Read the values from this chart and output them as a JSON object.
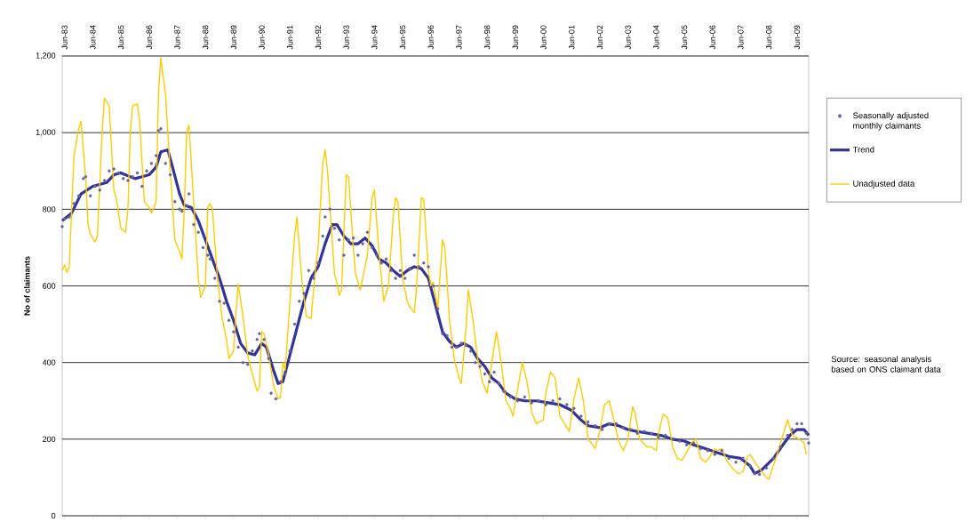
{
  "chart_data": {
    "type": "line",
    "ylabel": "No of claimants",
    "annotations": [
      "Source: seasonal analysis based on ONS claimant data"
    ],
    "xlim": [
      "1983-05",
      "2009-11"
    ],
    "xticks": [
      {
        "value": "1983-06",
        "label": "Jun-83"
      },
      {
        "value": "1984-06",
        "label": "Jun-84"
      },
      {
        "value": "1985-06",
        "label": "Jun-85"
      },
      {
        "value": "1986-06",
        "label": "Jun-86"
      },
      {
        "value": "1987-06",
        "label": "Jun-87"
      },
      {
        "value": "1988-06",
        "label": "Jun-88"
      },
      {
        "value": "1989-06",
        "label": "Jun-89"
      },
      {
        "value": "1990-06",
        "label": "Jun-90"
      },
      {
        "value": "1991-06",
        "label": "Jun-91"
      },
      {
        "value": "1992-06",
        "label": "Jun-92"
      },
      {
        "value": "1993-06",
        "label": "Jun-93"
      },
      {
        "value": "1994-06",
        "label": "Jun-94"
      },
      {
        "value": "1995-06",
        "label": "Jun-95"
      },
      {
        "value": "1996-06",
        "label": "Jun-96"
      },
      {
        "value": "1997-06",
        "label": "Jun-97"
      },
      {
        "value": "1998-06",
        "label": "Jun-98"
      },
      {
        "value": "1999-06",
        "label": "Jun-99"
      },
      {
        "value": "2000-06",
        "label": "Jun-00"
      },
      {
        "value": "2001-06",
        "label": "Jun-01"
      },
      {
        "value": "2002-06",
        "label": "Jun-02"
      },
      {
        "value": "2003-06",
        "label": "Jun-03"
      },
      {
        "value": "2004-06",
        "label": "Jun-04"
      },
      {
        "value": "2005-06",
        "label": "Jun-05"
      },
      {
        "value": "2006-06",
        "label": "Jun-06"
      },
      {
        "value": "2007-06",
        "label": "Jun-07"
      },
      {
        "value": "2008-06",
        "label": "Jun-08"
      },
      {
        "value": "2009-06",
        "label": "Jun-09"
      }
    ],
    "ylim": [
      0,
      1200
    ],
    "yticks": [
      0,
      200,
      400,
      600,
      800,
      {
        "value": 1000,
        "label": "1,000"
      },
      {
        "value": 1200,
        "label": "1,200"
      }
    ],
    "grid": "y",
    "legend": "right",
    "series": [
      {
        "name": "Seasonally adjusted monthly claimants",
        "type": "scatter",
        "marker": "circle",
        "color": "#666699",
        "x": [
          "1983-05",
          "1983-06",
          "1983-08",
          "1983-10",
          "1983-12",
          "1984-02",
          "1984-03",
          "1984-05",
          "1984-07",
          "1984-09",
          "1984-11",
          "1985-01",
          "1985-03",
          "1985-05",
          "1985-07",
          "1985-09",
          "1985-11",
          "1986-01",
          "1986-03",
          "1986-05",
          "1986-07",
          "1986-09",
          "1986-10",
          "1986-11",
          "1987-01",
          "1987-03",
          "1987-05",
          "1987-07",
          "1987-08",
          "1987-10",
          "1987-11",
          "1988-01",
          "1988-03",
          "1988-05",
          "1988-07",
          "1988-08",
          "1988-10",
          "1988-12",
          "1989-02",
          "1989-04",
          "1989-06",
          "1989-08",
          "1989-10",
          "1989-12",
          "1990-02",
          "1990-04",
          "1990-05",
          "1990-07",
          "1990-09",
          "1990-10",
          "1990-12",
          "1991-02",
          "1991-04",
          "1991-06",
          "1991-08",
          "1991-10",
          "1991-12",
          "1992-02",
          "1992-04",
          "1992-06",
          "1992-08",
          "1992-09",
          "1992-11",
          "1993-01",
          "1993-03",
          "1993-05",
          "1993-07",
          "1993-09",
          "1993-11",
          "1994-01",
          "1994-03",
          "1994-05",
          "1994-07",
          "1994-09",
          "1994-11",
          "1995-01",
          "1995-03",
          "1995-05",
          "1995-07",
          "1995-09",
          "1995-11",
          "1996-01",
          "1996-03",
          "1996-05",
          "1996-07",
          "1996-09",
          "1996-11",
          "1997-01",
          "1997-03",
          "1997-05",
          "1997-07",
          "1997-09",
          "1997-11",
          "1998-01",
          "1998-03",
          "1998-05",
          "1998-07",
          "1998-09",
          "1998-11",
          "1999-01",
          "1999-04",
          "1999-07",
          "1999-10",
          "2000-01",
          "2000-04",
          "2000-07",
          "2000-10",
          "2001-01",
          "2001-04",
          "2001-07",
          "2001-10",
          "2002-01",
          "2002-04",
          "2002-07",
          "2002-10",
          "2003-01",
          "2003-04",
          "2003-07",
          "2003-10",
          "2004-01",
          "2004-04",
          "2004-07",
          "2004-10",
          "2005-01",
          "2005-04",
          "2005-07",
          "2005-10",
          "2006-01",
          "2006-04",
          "2006-07",
          "2006-10",
          "2007-01",
          "2007-04",
          "2007-07",
          "2007-10",
          "2007-12",
          "2008-02",
          "2008-05",
          "2008-08",
          "2008-11",
          "2009-02",
          "2009-04",
          "2009-06",
          "2009-08",
          "2009-10",
          "2009-11"
        ],
        "values": [
          755,
          775,
          780,
          815,
          835,
          880,
          885,
          835,
          860,
          850,
          875,
          900,
          905,
          895,
          880,
          875,
          885,
          895,
          860,
          900,
          920,
          940,
          1005,
          1010,
          920,
          890,
          820,
          800,
          795,
          810,
          840,
          760,
          740,
          700,
          680,
          670,
          620,
          560,
          555,
          510,
          480,
          440,
          400,
          395,
          430,
          460,
          475,
          460,
          410,
          320,
          305,
          350,
          370,
          430,
          500,
          560,
          580,
          640,
          620,
          660,
          730,
          780,
          800,
          750,
          720,
          680,
          720,
          725,
          680,
          710,
          740,
          700,
          680,
          660,
          670,
          640,
          620,
          640,
          620,
          645,
          680,
          650,
          660,
          650,
          600,
          540,
          475,
          470,
          440,
          440,
          450,
          445,
          430,
          400,
          390,
          370,
          350,
          375,
          345,
          325,
          310,
          300,
          310,
          295,
          300,
          290,
          300,
          305,
          290,
          280,
          260,
          245,
          235,
          225,
          240,
          240,
          230,
          225,
          215,
          220,
          215,
          205,
          210,
          200,
          195,
          185,
          190,
          175,
          170,
          160,
          170,
          150,
          140,
          150,
          130,
          110,
          108,
          125,
          150,
          180,
          210,
          225,
          240,
          240,
          215,
          190
        ]
      },
      {
        "name": "Trend",
        "marker": "none",
        "color": "#333399",
        "x": [
          "1983-05",
          "1983-09",
          "1984-01",
          "1984-06",
          "1984-12",
          "1985-03",
          "1985-06",
          "1985-12",
          "1986-03",
          "1986-06",
          "1986-09",
          "1986-11",
          "1987-02",
          "1987-04",
          "1987-07",
          "1987-09",
          "1987-12",
          "1988-03",
          "1988-06",
          "1988-09",
          "1988-12",
          "1989-03",
          "1989-06",
          "1989-09",
          "1989-12",
          "1990-03",
          "1990-06",
          "1990-08",
          "1990-11",
          "1991-01",
          "1991-03",
          "1991-06",
          "1991-09",
          "1991-12",
          "1992-03",
          "1992-06",
          "1992-09",
          "1992-12",
          "1993-02",
          "1993-05",
          "1993-08",
          "1993-11",
          "1994-02",
          "1994-05",
          "1994-08",
          "1994-11",
          "1995-02",
          "1995-05",
          "1995-08",
          "1995-11",
          "1996-02",
          "1996-05",
          "1996-08",
          "1996-11",
          "1997-02",
          "1997-05",
          "1997-08",
          "1997-11",
          "1998-02",
          "1998-05",
          "1998-08",
          "1998-11",
          "1999-02",
          "1999-06",
          "1999-10",
          "2000-03",
          "2000-08",
          "2001-01",
          "2001-06",
          "2001-10",
          "2002-01",
          "2002-06",
          "2002-10",
          "2003-02",
          "2003-06",
          "2003-10",
          "2004-03",
          "2004-08",
          "2005-01",
          "2005-06",
          "2005-10",
          "2006-03",
          "2006-08",
          "2007-01",
          "2007-06",
          "2007-10",
          "2007-12",
          "2008-03",
          "2008-08",
          "2008-12",
          "2009-03",
          "2009-06",
          "2009-09",
          "2009-11"
        ],
        "values": [
          770,
          790,
          840,
          860,
          870,
          890,
          895,
          880,
          885,
          890,
          910,
          950,
          955,
          910,
          840,
          810,
          805,
          770,
          720,
          670,
          620,
          560,
          510,
          450,
          425,
          420,
          450,
          440,
          380,
          345,
          350,
          420,
          490,
          560,
          620,
          650,
          710,
          760,
          760,
          730,
          710,
          710,
          725,
          705,
          670,
          660,
          640,
          625,
          640,
          650,
          645,
          620,
          550,
          480,
          455,
          440,
          450,
          440,
          410,
          390,
          360,
          345,
          320,
          305,
          300,
          300,
          295,
          290,
          275,
          250,
          235,
          230,
          240,
          235,
          225,
          220,
          215,
          210,
          200,
          195,
          185,
          175,
          165,
          155,
          150,
          130,
          110,
          120,
          150,
          185,
          210,
          225,
          225,
          210
        ]
      },
      {
        "name": "Unadjusted data",
        "marker": "none",
        "color": "#ffcc00",
        "x": [
          "1983-05",
          "1983-06",
          "1983-07",
          "1983-08",
          "1983-10",
          "1983-12",
          "1984-01",
          "1984-03",
          "1984-04",
          "1984-05",
          "1984-07",
          "1984-08",
          "1984-10",
          "1984-11",
          "1985-01",
          "1985-03",
          "1985-04",
          "1985-06",
          "1985-08",
          "1985-09",
          "1985-10",
          "1985-11",
          "1986-01",
          "1986-02",
          "1986-04",
          "1986-06",
          "1986-07",
          "1986-09",
          "1986-10",
          "1986-11",
          "1987-01",
          "1987-03",
          "1987-05",
          "1987-07",
          "1987-08",
          "1987-09",
          "1987-10",
          "1987-11",
          "1988-01",
          "1988-03",
          "1988-04",
          "1988-06",
          "1988-07",
          "1988-08",
          "1988-09",
          "1988-11",
          "1989-01",
          "1989-03",
          "1989-04",
          "1989-06",
          "1989-07",
          "1989-08",
          "1989-10",
          "1989-12",
          "1990-02",
          "1990-04",
          "1990-05",
          "1990-06",
          "1990-07",
          "1990-09",
          "1990-11",
          "1991-01",
          "1991-02",
          "1991-03",
          "1991-04",
          "1991-06",
          "1991-08",
          "1991-09",
          "1991-11",
          "1992-01",
          "1992-03",
          "1992-05",
          "1992-06",
          "1992-08",
          "1992-09",
          "1992-10",
          "1993-01",
          "1993-02",
          "1993-03",
          "1993-04",
          "1993-06",
          "1993-07",
          "1993-09",
          "1993-10",
          "1993-12",
          "1994-02",
          "1994-03",
          "1994-05",
          "1994-06",
          "1994-08",
          "1994-09",
          "1994-10",
          "1994-12",
          "1995-02",
          "1995-03",
          "1995-04",
          "1995-06",
          "1995-08",
          "1995-09",
          "1995-11",
          "1995-12",
          "1996-02",
          "1996-03",
          "1996-05",
          "1996-06",
          "1996-07",
          "1996-09",
          "1996-11",
          "1996-12",
          "1997-02",
          "1997-04",
          "1997-06",
          "1997-07",
          "1997-09",
          "1997-10",
          "1997-12",
          "1998-02",
          "1998-04",
          "1998-06",
          "1998-08",
          "1998-10",
          "1998-12",
          "1999-02",
          "1999-04",
          "1999-05",
          "1999-07",
          "1999-09",
          "1999-11",
          "2000-01",
          "2000-03",
          "2000-04",
          "2000-06",
          "2000-07",
          "2000-09",
          "2000-11",
          "2001-01",
          "2001-03",
          "2001-05",
          "2001-07",
          "2001-09",
          "2001-11",
          "2002-01",
          "2002-03",
          "2002-04",
          "2002-06",
          "2002-08",
          "2002-10",
          "2002-12",
          "2003-02",
          "2003-04",
          "2003-06",
          "2003-08",
          "2003-09",
          "2003-11",
          "2004-02",
          "2004-04",
          "2004-06",
          "2004-07",
          "2004-09",
          "2004-11",
          "2005-01",
          "2005-03",
          "2005-05",
          "2005-07",
          "2005-09",
          "2005-11",
          "2006-01",
          "2006-03",
          "2006-05",
          "2006-07",
          "2006-08",
          "2006-10",
          "2006-12",
          "2007-03",
          "2007-05",
          "2007-07",
          "2007-09",
          "2007-10",
          "2007-12",
          "2008-03",
          "2008-05",
          "2008-06",
          "2008-09",
          "2008-11",
          "2009-01",
          "2009-02",
          "2009-04",
          "2009-07",
          "2009-09",
          "2009-10"
        ],
        "values": [
          640,
          655,
          635,
          650,
          940,
          1010,
          1030,
          880,
          760,
          735,
          715,
          730,
          1000,
          1090,
          1070,
          850,
          830,
          750,
          740,
          800,
          1000,
          1070,
          1075,
          1030,
          820,
          805,
          790,
          820,
          1100,
          1195,
          1100,
          900,
          720,
          690,
          670,
          800,
          1000,
          1020,
          820,
          620,
          570,
          600,
          805,
          815,
          800,
          630,
          520,
          460,
          410,
          430,
          530,
          605,
          520,
          420,
          370,
          325,
          335,
          480,
          475,
          420,
          340,
          305,
          310,
          400,
          380,
          560,
          730,
          780,
          620,
          520,
          515,
          650,
          700,
          920,
          955,
          900,
          630,
          610,
          575,
          590,
          890,
          885,
          700,
          630,
          590,
          650,
          680,
          830,
          850,
          680,
          620,
          560,
          600,
          780,
          830,
          820,
          620,
          560,
          545,
          530,
          600,
          830,
          825,
          640,
          600,
          610,
          540,
          720,
          700,
          510,
          410,
          360,
          345,
          490,
          590,
          510,
          410,
          350,
          320,
          400,
          480,
          400,
          300,
          280,
          260,
          330,
          400,
          350,
          270,
          240,
          245,
          250,
          320,
          375,
          360,
          260,
          240,
          220,
          305,
          360,
          300,
          200,
          185,
          175,
          220,
          290,
          300,
          250,
          195,
          170,
          200,
          285,
          270,
          200,
          180,
          180,
          170,
          215,
          265,
          255,
          180,
          150,
          145,
          165,
          190,
          200,
          150,
          140,
          155,
          175,
          170,
          175,
          145,
          120,
          110,
          115,
          155,
          160,
          140,
          115,
          100,
          95,
          150,
          190,
          230,
          250,
          210,
          200,
          190,
          160
        ]
      }
    ]
  }
}
